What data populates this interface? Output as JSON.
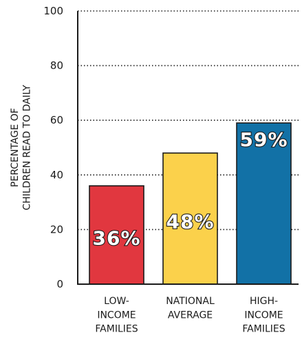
{
  "chart_data": {
    "type": "bar",
    "categories": [
      [
        "LOW-",
        "INCOME",
        "FAMILIES"
      ],
      [
        "NATIONAL",
        "AVERAGE"
      ],
      [
        "HIGH-",
        "INCOME",
        "FAMILIES"
      ]
    ],
    "values": [
      36,
      48,
      59
    ],
    "data_labels": [
      "36%",
      "48%",
      "59%"
    ],
    "colors": [
      "#e1373f",
      "#fbd14b",
      "#1271a6"
    ],
    "title": "",
    "xlabel": "",
    "ylabel": [
      "PERCENTAGE OF",
      "CHILDREN READ TO DAILY"
    ],
    "ylim": [
      0,
      100
    ],
    "yticks": [
      "0",
      "20",
      "40",
      "60",
      "80",
      "100"
    ],
    "grid": true
  }
}
